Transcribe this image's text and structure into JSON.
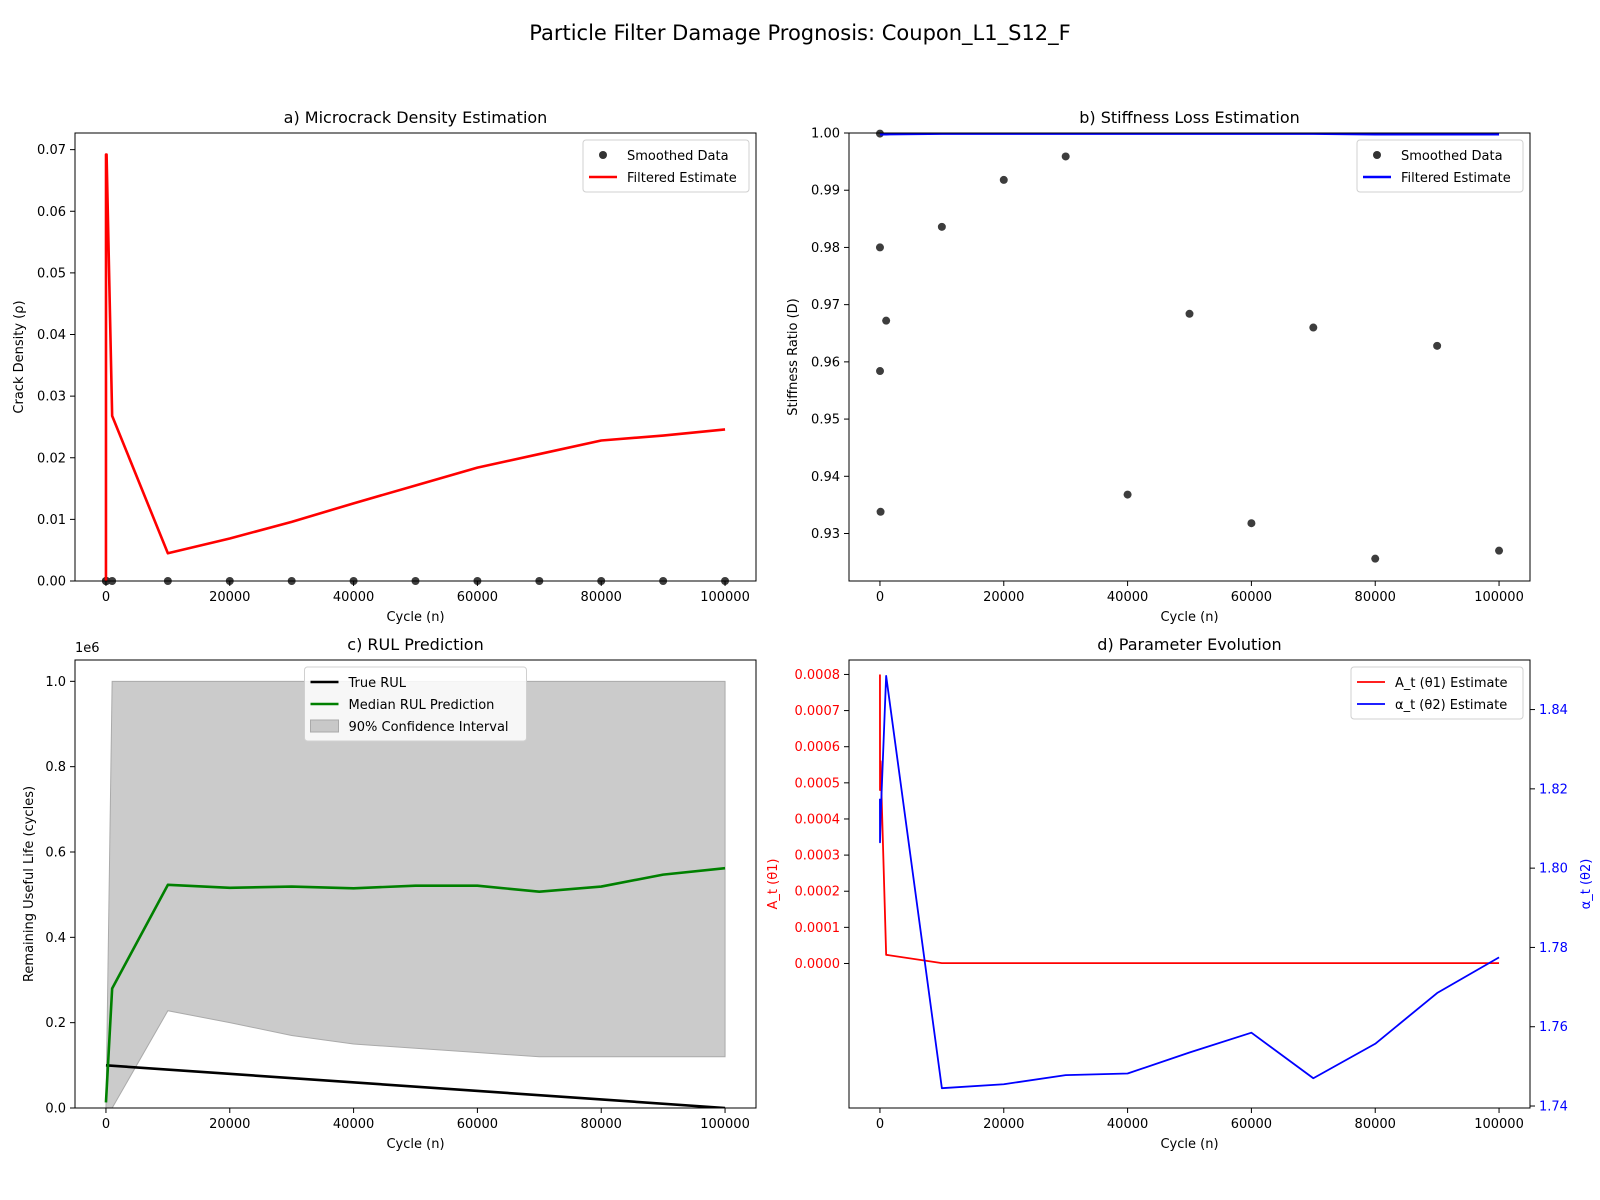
{
  "suptitle": "Particle Filter Damage Prognosis: Coupon_L1_S12_F",
  "colors": {
    "red": "#ff0000",
    "blue": "#0000ff",
    "green": "#008000",
    "black": "#000000",
    "band": "#c8c8c8",
    "dot": "#333333"
  },
  "chart_data": [
    {
      "id": "a",
      "type": "line",
      "title": "a) Microcrack Density Estimation",
      "xlabel": "Cycle (n)",
      "ylabel": "Crack Density (ρ)",
      "xlim": [
        -5000,
        105000
      ],
      "ylim": [
        0,
        0.0727
      ],
      "xticks": [
        0,
        20000,
        40000,
        60000,
        80000,
        100000
      ],
      "yticks": [
        0,
        0.01,
        0.02,
        0.03,
        0.04,
        0.05,
        0.06,
        0.07
      ],
      "ytick_decimals": 2,
      "legend": {
        "loc": "upper-right"
      },
      "series": [
        {
          "name": "Smoothed Data",
          "kind": "scatter",
          "color": "#333333",
          "x": [
            0,
            1,
            10,
            100,
            1000,
            10000,
            20000,
            30000,
            40000,
            50000,
            60000,
            70000,
            80000,
            90000,
            100000
          ],
          "y": [
            0,
            0,
            0,
            0,
            0,
            0,
            0,
            0,
            0,
            0,
            0,
            0,
            0,
            0,
            0
          ]
        },
        {
          "name": "Filtered Estimate",
          "kind": "line",
          "color": "#ff0000",
          "x": [
            0,
            1,
            10,
            100,
            1000,
            10000,
            20000,
            30000,
            40000,
            50000,
            60000,
            70000,
            80000,
            90000,
            100000
          ],
          "y": [
            0.0,
            0.0,
            0.0692,
            0.0692,
            0.0268,
            0.0045,
            0.0069,
            0.0096,
            0.0126,
            0.0155,
            0.0184,
            0.0206,
            0.0228,
            0.0236,
            0.0246
          ]
        }
      ]
    },
    {
      "id": "b",
      "type": "line",
      "title": "b) Stiffness Loss Estimation",
      "xlabel": "Cycle (n)",
      "ylabel": "Stiffness Ratio (D)",
      "xlim": [
        -5000,
        105000
      ],
      "ylim": [
        0.9217,
        1.0
      ],
      "xticks": [
        0,
        20000,
        40000,
        60000,
        80000,
        100000
      ],
      "yticks": [
        0.93,
        0.94,
        0.95,
        0.96,
        0.97,
        0.98,
        0.99,
        1.0
      ],
      "ytick_decimals": 2,
      "legend": {
        "loc": "upper-right"
      },
      "series": [
        {
          "name": "Smoothed Data",
          "kind": "scatter",
          "color": "#333333",
          "x": [
            0,
            1,
            10,
            100,
            1000,
            10000,
            20000,
            30000,
            40000,
            50000,
            60000,
            70000,
            80000,
            90000,
            100000
          ],
          "y": [
            0.9999,
            0.98,
            0.9584,
            0.9338,
            0.9672,
            0.9836,
            0.9918,
            0.9959,
            0.9368,
            0.9684,
            0.9318,
            0.966,
            0.9256,
            0.9628,
            0.927
          ]
        },
        {
          "name": "Filtered Estimate",
          "kind": "line",
          "color": "#0000ff",
          "x": [
            0,
            1,
            10,
            100,
            1000,
            10000,
            20000,
            30000,
            40000,
            50000,
            60000,
            70000,
            80000,
            90000,
            100000
          ],
          "y": [
            0.9998,
            0.9998,
            0.9998,
            0.9998,
            0.9998,
            0.9999,
            0.9999,
            0.9999,
            0.9999,
            0.9999,
            0.9999,
            0.9999,
            0.9998,
            0.9998,
            0.9998
          ]
        }
      ]
    },
    {
      "id": "c",
      "type": "line",
      "title": "c) RUL Prediction",
      "xlabel": "Cycle (n)",
      "ylabel": "Remaining Useful Life (cycles)",
      "offset_label": "1e6",
      "xlim": [
        -5000,
        105000
      ],
      "ylim": [
        0,
        1.05
      ],
      "xticks": [
        0,
        20000,
        40000,
        60000,
        80000,
        100000
      ],
      "yticks": [
        0,
        0.2,
        0.4,
        0.6,
        0.8,
        1.0
      ],
      "ytick_decimals": 1,
      "legend": {
        "loc": "upper-center"
      },
      "series": [
        {
          "name": "True RUL",
          "kind": "line",
          "color": "#000000",
          "x": [
            0,
            100000
          ],
          "y": [
            0.1,
            0.0
          ]
        },
        {
          "name": "Median RUL Prediction",
          "kind": "line",
          "color": "#008000",
          "x": [
            0,
            1000,
            10000,
            20000,
            30000,
            40000,
            50000,
            60000,
            70000,
            80000,
            90000,
            100000
          ],
          "y": [
            0.013,
            0.28,
            0.523,
            0.516,
            0.519,
            0.515,
            0.521,
            0.521,
            0.507,
            0.519,
            0.547,
            0.562
          ]
        },
        {
          "name": "90% Confidence Interval",
          "kind": "band",
          "color": "#c8c8c8",
          "x": [
            0,
            1000,
            10000,
            20000,
            30000,
            40000,
            50000,
            60000,
            70000,
            80000,
            90000,
            100000
          ],
          "lower": [
            0.0,
            0.0,
            0.228,
            0.2,
            0.17,
            0.15,
            0.14,
            0.13,
            0.12,
            0.12,
            0.12,
            0.12
          ],
          "upper": [
            0.0,
            1.0,
            1.0,
            1.0,
            1.0,
            1.0,
            1.0,
            1.0,
            1.0,
            1.0,
            1.0,
            1.0
          ]
        }
      ]
    },
    {
      "id": "d",
      "type": "line",
      "title": "d) Parameter Evolution",
      "xlabel": "Cycle (n)",
      "ylabel": "A_t (θ1)",
      "ylabel2": "α_t (θ2)",
      "xlim": [
        -5000,
        105000
      ],
      "ylim": [
        -0.0004,
        0.00084
      ],
      "y2lim": [
        1.7395,
        1.8525
      ],
      "xticks": [
        0,
        20000,
        40000,
        60000,
        80000,
        100000
      ],
      "yticks": [
        0.0,
        0.0001,
        0.0002,
        0.0003,
        0.0004,
        0.0005,
        0.0006,
        0.0007,
        0.0008
      ],
      "ytick_decimals": 4,
      "y2ticks": [
        1.74,
        1.76,
        1.78,
        1.8,
        1.82,
        1.84
      ],
      "y2tick_decimals": 2,
      "legend": {
        "loc": "upper-right"
      },
      "series": [
        {
          "name": "A_t (θ1) Estimate",
          "kind": "line",
          "axis": "left",
          "color": "#ff0000",
          "x": [
            0,
            10,
            100,
            1000,
            10000,
            20000,
            30000,
            40000,
            50000,
            60000,
            70000,
            80000,
            90000,
            100000
          ],
          "y": [
            0.0008,
            0.00048,
            0.00056,
            2.4e-05,
            1e-06,
            1e-06,
            1e-06,
            1e-06,
            1e-06,
            1e-06,
            1e-06,
            1e-06,
            1e-06,
            1e-06
          ]
        },
        {
          "name": "α_t (θ2) Estimate",
          "kind": "line",
          "axis": "right",
          "color": "#0000ff",
          "x": [
            0,
            10,
            100,
            1000,
            10000,
            20000,
            30000,
            40000,
            50000,
            60000,
            70000,
            80000,
            90000,
            100000
          ],
          "y": [
            1.8175,
            1.8065,
            1.8125,
            1.8485,
            1.7445,
            1.7455,
            1.7478,
            1.7482,
            1.7535,
            1.7585,
            1.747,
            1.7557,
            1.7685,
            1.7775
          ]
        }
      ]
    }
  ]
}
